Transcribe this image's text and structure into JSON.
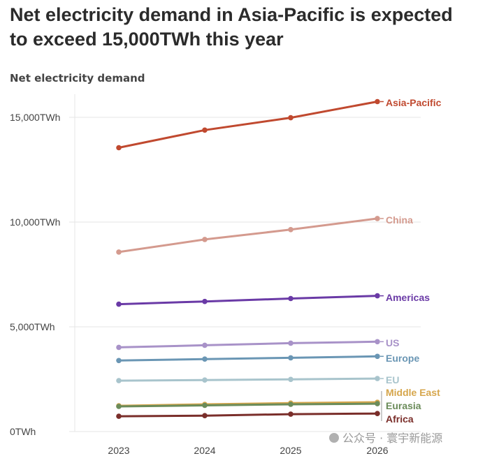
{
  "title": "Net electricity demand in Asia-Pacific is expected to exceed 15,000TWh this year",
  "watermark": "公众号 · 寰宇新能源",
  "chart_data": {
    "type": "line",
    "title": "Net electricity demand in Asia-Pacific is expected to exceed 15,000TWh this year",
    "ylabel": "Net electricity demand",
    "xlabel": "",
    "x": [
      "2023",
      "2024",
      "2025",
      "2026"
    ],
    "ylim": [
      0,
      16000
    ],
    "yticks": [
      0,
      5000,
      10000,
      15000
    ],
    "ytick_labels": [
      "0TWh",
      "5,000TWh",
      "10,000TWh",
      "15,000TWh"
    ],
    "grid": true,
    "legend": "direct labels at line ends (right)",
    "series": [
      {
        "name": "Asia-Pacific",
        "color": "#c0492f",
        "values": [
          13550,
          14390,
          14980,
          15750
        ]
      },
      {
        "name": "China",
        "color": "#d49a8e",
        "values": [
          8570,
          9170,
          9640,
          10170
        ]
      },
      {
        "name": "Americas",
        "color": "#6a3aa6",
        "values": [
          6080,
          6210,
          6350,
          6480
        ]
      },
      {
        "name": "US",
        "color": "#a892c8",
        "values": [
          4020,
          4120,
          4220,
          4290
        ]
      },
      {
        "name": "Europe",
        "color": "#6a96b4",
        "values": [
          3390,
          3460,
          3520,
          3590
        ]
      },
      {
        "name": "EU",
        "color": "#a8c4cc",
        "values": [
          2430,
          2460,
          2490,
          2530
        ]
      },
      {
        "name": "Middle East",
        "color": "#d6a64c",
        "values": [
          1230,
          1300,
          1360,
          1400
        ]
      },
      {
        "name": "Eurasia",
        "color": "#6b8c5a",
        "values": [
          1200,
          1250,
          1300,
          1330
        ]
      },
      {
        "name": "Africa",
        "color": "#7a2e2a",
        "values": [
          730,
          760,
          830,
          860
        ]
      }
    ]
  }
}
